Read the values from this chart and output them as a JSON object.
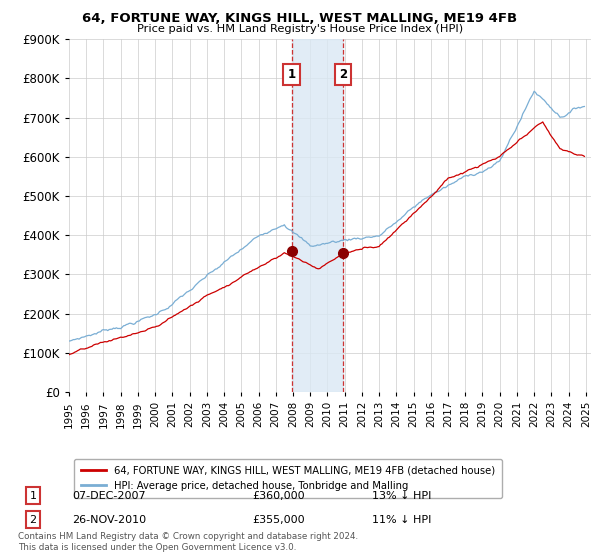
{
  "title": "64, FORTUNE WAY, KINGS HILL, WEST MALLING, ME19 4FB",
  "subtitle": "Price paid vs. HM Land Registry's House Price Index (HPI)",
  "red_label": "64, FORTUNE WAY, KINGS HILL, WEST MALLING, ME19 4FB (detached house)",
  "blue_label": "HPI: Average price, detached house, Tonbridge and Malling",
  "footnote": "Contains HM Land Registry data © Crown copyright and database right 2024.\nThis data is licensed under the Open Government Licence v3.0.",
  "transaction1": {
    "label": "1",
    "date": "07-DEC-2007",
    "price": "£360,000",
    "pct": "13% ↓ HPI"
  },
  "transaction2": {
    "label": "2",
    "date": "26-NOV-2010",
    "price": "£355,000",
    "pct": "11% ↓ HPI"
  },
  "t1_year": 2007.92,
  "t2_year": 2010.9,
  "t1_price": 360000,
  "t2_price": 355000,
  "ylim": [
    0,
    900000
  ],
  "yticks": [
    0,
    100000,
    200000,
    300000,
    400000,
    500000,
    600000,
    700000,
    800000,
    900000
  ],
  "red_color": "#cc0000",
  "blue_color": "#7aaed4",
  "shade_color": "#dae8f4",
  "box_color": "#cc3333",
  "bg_color": "#ffffff",
  "grid_color": "#cccccc",
  "year_start": 1995,
  "year_end": 2025
}
